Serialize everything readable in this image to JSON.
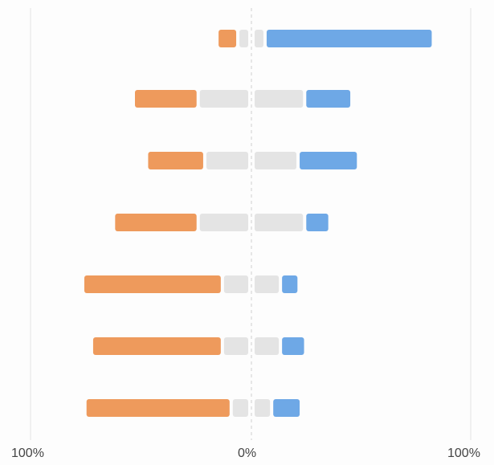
{
  "chart_data": {
    "type": "bar",
    "subtype": "diverging-stacked-horizontal",
    "title": "",
    "xlabel": "",
    "ylabel": "",
    "xlim": [
      -100,
      100
    ],
    "ticks": [
      "100%",
      "0%",
      "100%"
    ],
    "grid": true,
    "legend": "none",
    "segments": [
      "negative-strong",
      "neutral-negative",
      "neutral-positive",
      "positive"
    ],
    "colors": {
      "negative": "#ee9a5c",
      "neutral": "#e4e4e4",
      "positive": "#6ea8e6",
      "gridline": "#e2e2e2",
      "zero_line": "#cfcfcf"
    },
    "rows": [
      {
        "negative": 8,
        "neutral_negative": 4,
        "neutral_positive": 4,
        "positive": 75
      },
      {
        "negative": 28,
        "neutral_negative": 22,
        "neutral_positive": 22,
        "positive": 20
      },
      {
        "negative": 25,
        "neutral_negative": 19,
        "neutral_positive": 19,
        "positive": 26
      },
      {
        "negative": 37,
        "neutral_negative": 22,
        "neutral_positive": 22,
        "positive": 10
      },
      {
        "negative": 62,
        "neutral_negative": 11,
        "neutral_positive": 11,
        "positive": 7
      },
      {
        "negative": 58,
        "neutral_negative": 11,
        "neutral_positive": 11,
        "positive": 10
      },
      {
        "negative": 65,
        "neutral_negative": 7,
        "neutral_positive": 7,
        "positive": 12
      }
    ]
  }
}
